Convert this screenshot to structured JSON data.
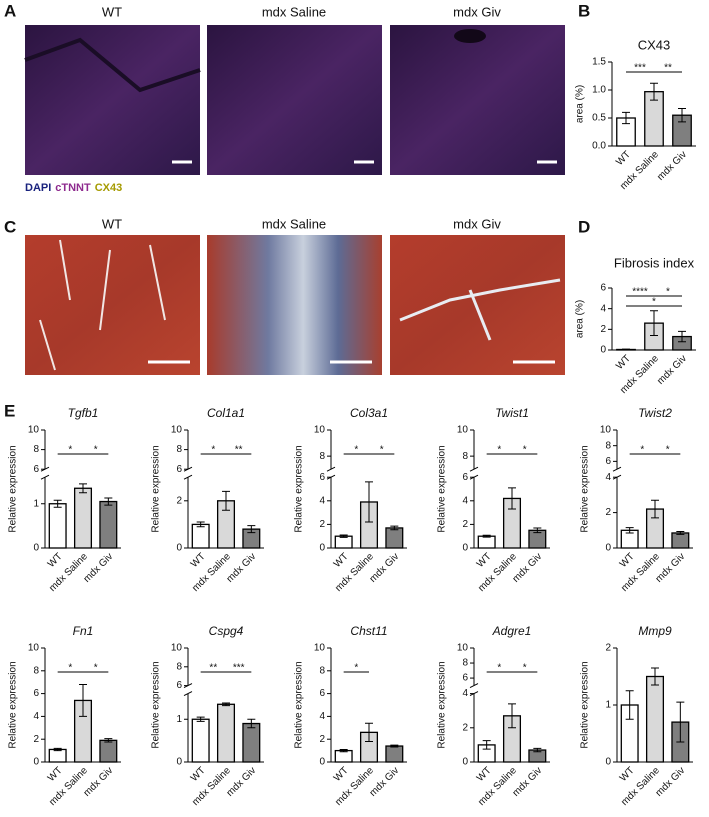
{
  "panel_letters": [
    "A",
    "B",
    "C",
    "D",
    "E"
  ],
  "panel_a": {
    "labels": [
      "WT",
      "mdx Saline",
      "mdx Giv"
    ],
    "stains": [
      {
        "name": "DAPI",
        "color": "#1a237e"
      },
      {
        "name": "cTNNT",
        "color": "#8e2a8e"
      },
      {
        "name": "CX43",
        "color": "#a59a00"
      }
    ]
  },
  "panel_c": {
    "labels": [
      "WT",
      "mdx Saline",
      "mdx Giv"
    ]
  },
  "chart_data": [
    {
      "type": "bar",
      "title": "CX43",
      "ylabel": "area (%)",
      "categories": [
        "WT",
        "mdx Saline",
        "mdx Giv"
      ],
      "values": [
        0.5,
        0.97,
        0.55
      ],
      "errors": [
        0.1,
        0.15,
        0.12
      ],
      "colors": [
        "#ffffff",
        "#d9d9d9",
        "#7f7f7f"
      ],
      "ylim": [
        0,
        1.5
      ],
      "yticks": [
        {
          "value": 0,
          "label": "0.0"
        },
        {
          "value": 0.5,
          "label": "0.5"
        },
        {
          "value": 1,
          "label": "1.0"
        },
        {
          "value": 1.5,
          "label": "1.5"
        }
      ],
      "significance": [
        "***",
        "**"
      ]
    },
    {
      "type": "bar",
      "title": "Fibrosis index",
      "ylabel": "area (%)",
      "categories": [
        "WT",
        "mdx Saline",
        "mdx Giv"
      ],
      "values": [
        0.05,
        2.6,
        1.3
      ],
      "errors": [
        0.03,
        1.2,
        0.5
      ],
      "colors": [
        "#ffffff",
        "#d9d9d9",
        "#7f7f7f"
      ],
      "ylim": [
        0,
        6
      ],
      "yticks": [
        0,
        2,
        4,
        6
      ],
      "significance": [
        "****",
        "*",
        "*"
      ]
    },
    {
      "type": "bar",
      "title": "Tgfb1",
      "ylabel": "Relative expression",
      "categories": [
        "WT",
        "mdx Saline",
        "mdx Giv"
      ],
      "values": [
        1.0,
        1.35,
        1.05
      ],
      "errors": [
        0.08,
        0.1,
        0.08
      ],
      "colors": [
        "#ffffff",
        "#d9d9d9",
        "#7f7f7f"
      ],
      "ylim": [
        0,
        10
      ],
      "axis_break": [
        1.6,
        6
      ],
      "yticks": [
        0,
        1,
        6,
        8,
        10
      ],
      "significance": [
        "*",
        "*"
      ]
    },
    {
      "type": "bar",
      "title": "Col1a1",
      "ylabel": "Relative expression",
      "categories": [
        "WT",
        "mdx Saline",
        "mdx Giv"
      ],
      "values": [
        1.0,
        2.0,
        0.8
      ],
      "errors": [
        0.1,
        0.4,
        0.15
      ],
      "colors": [
        "#ffffff",
        "#d9d9d9",
        "#7f7f7f"
      ],
      "ylim": [
        0,
        10
      ],
      "axis_break": [
        3,
        6
      ],
      "yticks": [
        0,
        2,
        6,
        8,
        10
      ],
      "significance": [
        "*",
        "**"
      ]
    },
    {
      "type": "bar",
      "title": "Col3a1",
      "ylabel": "Relative expression",
      "categories": [
        "WT",
        "mdx Saline",
        "mdx Giv"
      ],
      "values": [
        1.0,
        3.9,
        1.7
      ],
      "errors": [
        0.1,
        1.7,
        0.15
      ],
      "colors": [
        "#ffffff",
        "#d9d9d9",
        "#7f7f7f"
      ],
      "ylim": [
        0,
        10
      ],
      "axis_break": [
        6,
        7
      ],
      "yticks": [
        0,
        2,
        4,
        6,
        8,
        10
      ],
      "significance": [
        "*",
        "*"
      ]
    },
    {
      "type": "bar",
      "title": "Twist1",
      "ylabel": "Relative expression",
      "categories": [
        "WT",
        "mdx Saline",
        "mdx Giv"
      ],
      "values": [
        1.0,
        4.2,
        1.5
      ],
      "errors": [
        0.08,
        0.9,
        0.2
      ],
      "colors": [
        "#ffffff",
        "#d9d9d9",
        "#7f7f7f"
      ],
      "ylim": [
        0,
        10
      ],
      "axis_break": [
        6,
        7
      ],
      "yticks": [
        0,
        2,
        4,
        6,
        8,
        10
      ],
      "significance": [
        "*",
        "*"
      ]
    },
    {
      "type": "bar",
      "title": "Twist2",
      "ylabel": "Relative expression",
      "categories": [
        "WT",
        "mdx Saline",
        "mdx Giv"
      ],
      "values": [
        1.0,
        2.2,
        0.85
      ],
      "errors": [
        0.15,
        0.5,
        0.08
      ],
      "colors": [
        "#ffffff",
        "#d9d9d9",
        "#7f7f7f"
      ],
      "ylim": [
        0,
        10
      ],
      "axis_break": [
        4,
        5
      ],
      "yticks": [
        0,
        2,
        4,
        6,
        8,
        10
      ],
      "significance": [
        "*",
        "*"
      ]
    },
    {
      "type": "bar",
      "title": "Fn1",
      "ylabel": "Relative expression",
      "categories": [
        "WT",
        "mdx Saline",
        "mdx Giv"
      ],
      "values": [
        1.1,
        5.4,
        1.9
      ],
      "errors": [
        0.1,
        1.4,
        0.15
      ],
      "colors": [
        "#ffffff",
        "#d9d9d9",
        "#7f7f7f"
      ],
      "ylim": [
        0,
        10
      ],
      "yticks": [
        0,
        2,
        4,
        6,
        8,
        10
      ],
      "significance": [
        "*",
        "*"
      ]
    },
    {
      "type": "bar",
      "title": "Cspg4",
      "ylabel": "Relative expression",
      "categories": [
        "WT",
        "mdx Saline",
        "mdx Giv"
      ],
      "values": [
        1.0,
        1.35,
        0.9
      ],
      "errors": [
        0.05,
        0.03,
        0.1
      ],
      "colors": [
        "#ffffff",
        "#d9d9d9",
        "#7f7f7f"
      ],
      "ylim": [
        0,
        10
      ],
      "axis_break": [
        1.6,
        6
      ],
      "yticks": [
        0,
        1,
        6,
        8,
        10
      ],
      "significance": [
        "**",
        "***"
      ]
    },
    {
      "type": "bar",
      "title": "Chst11",
      "ylabel": "Relative expression",
      "categories": [
        "WT",
        "mdx Saline",
        "mdx Giv"
      ],
      "values": [
        1.0,
        2.6,
        1.4
      ],
      "errors": [
        0.1,
        0.8,
        0.08
      ],
      "colors": [
        "#ffffff",
        "#d9d9d9",
        "#7f7f7f"
      ],
      "ylim": [
        0,
        10
      ],
      "yticks": [
        0,
        2,
        4,
        6,
        8,
        10
      ],
      "significance": [
        "*"
      ]
    },
    {
      "type": "bar",
      "title": "Adgre1",
      "ylabel": "Relative expression",
      "categories": [
        "WT",
        "mdx Saline",
        "mdx Giv"
      ],
      "values": [
        1.0,
        2.7,
        0.7
      ],
      "errors": [
        0.25,
        0.7,
        0.1
      ],
      "colors": [
        "#ffffff",
        "#d9d9d9",
        "#7f7f7f"
      ],
      "ylim": [
        0,
        10
      ],
      "axis_break": [
        4,
        5
      ],
      "yticks": [
        0,
        2,
        4,
        6,
        8,
        10
      ],
      "significance": [
        "*",
        "*"
      ]
    },
    {
      "type": "bar",
      "title": "Mmp9",
      "ylabel": "Relative expression",
      "categories": [
        "WT",
        "mdx Saline",
        "mdx Giv"
      ],
      "values": [
        1.0,
        1.5,
        0.7
      ],
      "errors": [
        0.25,
        0.15,
        0.35
      ],
      "colors": [
        "#ffffff",
        "#d9d9d9",
        "#7f7f7f"
      ],
      "ylim": [
        0,
        2
      ],
      "yticks": [
        0,
        1,
        2
      ]
    }
  ]
}
